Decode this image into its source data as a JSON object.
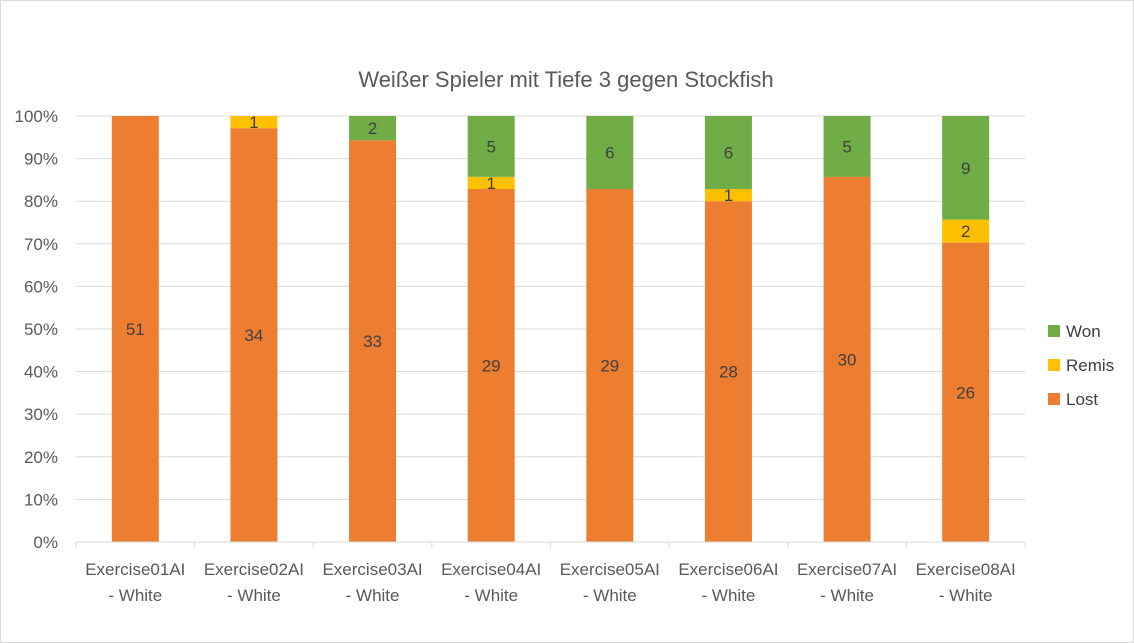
{
  "chart_data": {
    "type": "bar",
    "stacked": "percent",
    "title": "Weißer Spieler mit Tiefe 3 gegen Stockfish",
    "categories": [
      [
        "Exercise01AI",
        "- White"
      ],
      [
        "Exercise02AI",
        "- White"
      ],
      [
        "Exercise03AI",
        "- White"
      ],
      [
        "Exercise04AI",
        "- White"
      ],
      [
        "Exercise05AI",
        "- White"
      ],
      [
        "Exercise06AI",
        "- White"
      ],
      [
        "Exercise07AI",
        "- White"
      ],
      [
        "Exercise08AI",
        "- White"
      ]
    ],
    "series": [
      {
        "name": "Lost",
        "color": "#ED7D31",
        "values": [
          51,
          34,
          33,
          29,
          29,
          28,
          30,
          26
        ]
      },
      {
        "name": "Remis",
        "color": "#FFC000",
        "values": [
          0,
          1,
          0,
          1,
          0,
          1,
          0,
          2
        ]
      },
      {
        "name": "Won",
        "color": "#70AD47",
        "values": [
          0,
          0,
          2,
          5,
          6,
          6,
          5,
          9
        ]
      }
    ],
    "y_ticks": [
      "0%",
      "10%",
      "20%",
      "30%",
      "40%",
      "50%",
      "60%",
      "70%",
      "80%",
      "90%",
      "100%"
    ],
    "ylim": [
      0,
      100
    ],
    "grid": true,
    "legend": {
      "position": "right",
      "order": [
        "Won",
        "Remis",
        "Lost"
      ]
    }
  }
}
